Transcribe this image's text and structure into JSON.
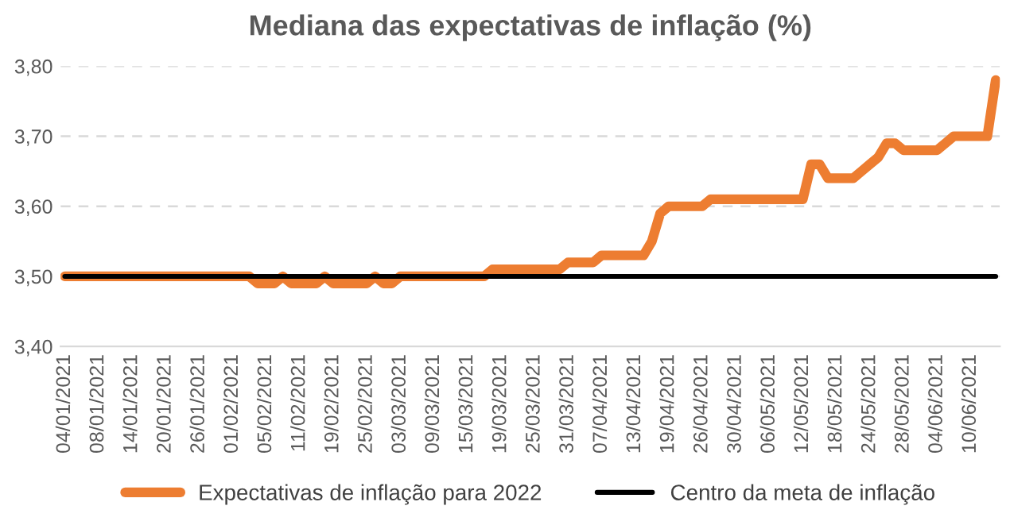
{
  "chart_data": {
    "type": "line",
    "title": "Mediana das expectativas de inflação (%)",
    "categories": [
      "04/01/2021",
      null,
      null,
      null,
      "08/01/2021",
      null,
      null,
      null,
      "14/01/2021",
      null,
      null,
      null,
      "20/01/2021",
      null,
      null,
      null,
      "26/01/2021",
      null,
      null,
      null,
      "01/02/2021",
      null,
      null,
      null,
      "05/02/2021",
      null,
      null,
      null,
      "11/02/2021",
      null,
      null,
      null,
      "19/02/2021",
      null,
      null,
      null,
      "25/02/2021",
      null,
      null,
      null,
      "03/03/2021",
      null,
      null,
      null,
      "09/03/2021",
      null,
      null,
      null,
      "15/03/2021",
      null,
      null,
      null,
      "19/03/2021",
      null,
      null,
      null,
      "25/03/2021",
      null,
      null,
      null,
      "31/03/2021",
      null,
      null,
      null,
      "07/04/2021",
      null,
      null,
      null,
      "13/04/2021",
      null,
      null,
      null,
      "19/04/2021",
      null,
      null,
      null,
      "26/04/2021",
      null,
      null,
      null,
      "30/04/2021",
      null,
      null,
      null,
      "06/05/2021",
      null,
      null,
      null,
      "12/05/2021",
      null,
      null,
      null,
      "18/05/2021",
      null,
      null,
      null,
      "24/05/2021",
      null,
      null,
      null,
      "28/05/2021",
      null,
      null,
      null,
      "04/06/2021",
      null,
      null,
      null,
      "10/06/2021",
      null,
      null,
      null
    ],
    "series": [
      {
        "name": "Expectativas de inflação para 2022",
        "color": "#ed7d31",
        "values": [
          3.5,
          3.5,
          3.5,
          3.5,
          3.5,
          3.5,
          3.5,
          3.5,
          3.5,
          3.5,
          3.5,
          3.5,
          3.5,
          3.5,
          3.5,
          3.5,
          3.5,
          3.5,
          3.5,
          3.5,
          3.5,
          3.5,
          3.5,
          3.49,
          3.49,
          3.49,
          3.5,
          3.49,
          3.49,
          3.49,
          3.49,
          3.5,
          3.49,
          3.49,
          3.49,
          3.49,
          3.49,
          3.5,
          3.49,
          3.49,
          3.5,
          3.5,
          3.5,
          3.5,
          3.5,
          3.5,
          3.5,
          3.5,
          3.5,
          3.5,
          3.5,
          3.51,
          3.51,
          3.51,
          3.51,
          3.51,
          3.51,
          3.51,
          3.51,
          3.51,
          3.52,
          3.52,
          3.52,
          3.52,
          3.53,
          3.53,
          3.53,
          3.53,
          3.53,
          3.53,
          3.55,
          3.59,
          3.6,
          3.6,
          3.6,
          3.6,
          3.6,
          3.61,
          3.61,
          3.61,
          3.61,
          3.61,
          3.61,
          3.61,
          3.61,
          3.61,
          3.61,
          3.61,
          3.61,
          3.66,
          3.66,
          3.64,
          3.64,
          3.64,
          3.64,
          3.65,
          3.66,
          3.67,
          3.69,
          3.69,
          3.68,
          3.68,
          3.68,
          3.68,
          3.68,
          3.69,
          3.7,
          3.7,
          3.7,
          3.7,
          3.7,
          3.78
        ]
      },
      {
        "name": "Centro da meta de inflação",
        "color": "#000000",
        "values": [
          3.5,
          3.5,
          3.5,
          3.5,
          3.5,
          3.5,
          3.5,
          3.5,
          3.5,
          3.5,
          3.5,
          3.5,
          3.5,
          3.5,
          3.5,
          3.5,
          3.5,
          3.5,
          3.5,
          3.5,
          3.5,
          3.5,
          3.5,
          3.5,
          3.5,
          3.5,
          3.5,
          3.5,
          3.5,
          3.5,
          3.5,
          3.5,
          3.5,
          3.5,
          3.5,
          3.5,
          3.5,
          3.5,
          3.5,
          3.5,
          3.5,
          3.5,
          3.5,
          3.5,
          3.5,
          3.5,
          3.5,
          3.5,
          3.5,
          3.5,
          3.5,
          3.5,
          3.5,
          3.5,
          3.5,
          3.5,
          3.5,
          3.5,
          3.5,
          3.5,
          3.5,
          3.5,
          3.5,
          3.5,
          3.5,
          3.5,
          3.5,
          3.5,
          3.5,
          3.5,
          3.5,
          3.5,
          3.5,
          3.5,
          3.5,
          3.5,
          3.5,
          3.5,
          3.5,
          3.5,
          3.5,
          3.5,
          3.5,
          3.5,
          3.5,
          3.5,
          3.5,
          3.5,
          3.5,
          3.5,
          3.5,
          3.5,
          3.5,
          3.5,
          3.5,
          3.5,
          3.5,
          3.5,
          3.5,
          3.5,
          3.5,
          3.5,
          3.5,
          3.5,
          3.5,
          3.5,
          3.5,
          3.5,
          3.5,
          3.5,
          3.5,
          3.5
        ]
      }
    ],
    "ylim": [
      3.4,
      3.8
    ],
    "yticks": [
      {
        "value": 3.4,
        "label": "3,40"
      },
      {
        "value": 3.5,
        "label": "3,50"
      },
      {
        "value": 3.6,
        "label": "3,60"
      },
      {
        "value": 3.7,
        "label": "3,70"
      },
      {
        "value": 3.8,
        "label": "3,80"
      }
    ],
    "grid": "y",
    "legend": "bottom",
    "marker": "none",
    "line_style": "solid"
  }
}
